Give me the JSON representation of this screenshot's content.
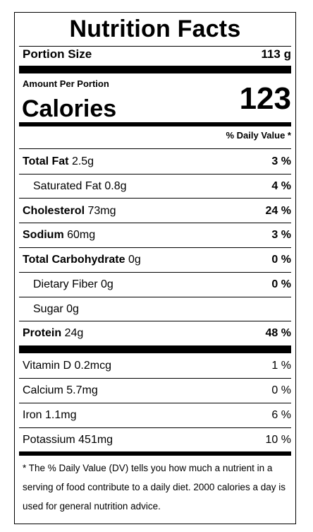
{
  "title": "Nutrition Facts",
  "portion": {
    "label": "Portion Size",
    "value": "113 g"
  },
  "amount_per_portion": "Amount Per Portion",
  "calories": {
    "label": "Calories",
    "value": "123"
  },
  "dv_header": "% Daily Value *",
  "nutrients": [
    {
      "name": "Total Fat",
      "amount": "2.5g",
      "dv": "3 %"
    },
    {
      "name": "Saturated Fat",
      "amount": "0.8g",
      "dv": "4 %"
    },
    {
      "name": "Cholesterol",
      "amount": "73mg",
      "dv": "24 %"
    },
    {
      "name": "Sodium",
      "amount": "60mg",
      "dv": "3 %"
    },
    {
      "name": "Total Carbohydrate",
      "amount": "0g",
      "dv": "0 %"
    },
    {
      "name": "Dietary Fiber",
      "amount": "0g",
      "dv": "0 %"
    },
    {
      "name": "Sugar",
      "amount": "0g",
      "dv": ""
    },
    {
      "name": "Protein",
      "amount": "24g",
      "dv": "48 %"
    }
  ],
  "vitamins": [
    {
      "name": "Vitamin D",
      "amount": "0.2mcg",
      "dv": "1 %"
    },
    {
      "name": "Calcium",
      "amount": "5.7mg",
      "dv": "0 %"
    },
    {
      "name": "Iron",
      "amount": "1.1mg",
      "dv": "6 %"
    },
    {
      "name": "Potassium",
      "amount": "451mg",
      "dv": "10 %"
    }
  ],
  "footnote": "* The % Daily Value (DV) tells you how much a nutrient in a serving of food contribute to a daily diet. 2000 calories a day is used for general nutrition advice."
}
